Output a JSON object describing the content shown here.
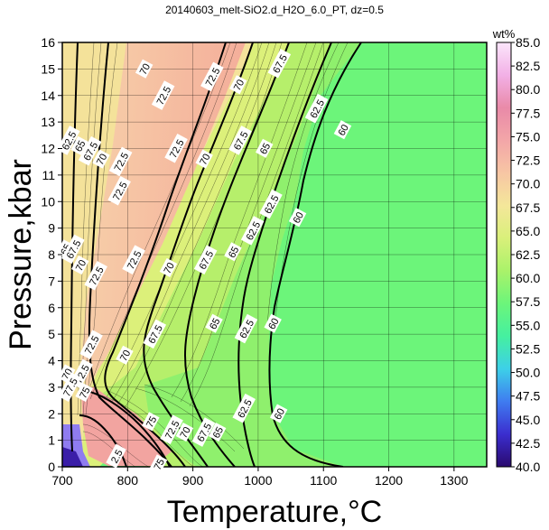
{
  "chart_data": {
    "type": "heatmap",
    "title": "20140603_melt-SiO2.d_H2O_6.0_PT, dz=0.5",
    "xlabel": "Temperature,°C",
    "ylabel": "Pressure,kbar",
    "xlim": [
      700,
      1350
    ],
    "ylim": [
      0,
      16
    ],
    "x_ticks": [
      "700",
      "800",
      "900",
      "1000",
      "1100",
      "1200",
      "1300"
    ],
    "x_tick_values": [
      700,
      800,
      900,
      1000,
      1100,
      1200,
      1300
    ],
    "y_ticks": [
      "0",
      "1",
      "2",
      "3",
      "4",
      "5",
      "6",
      "7",
      "8",
      "9",
      "10",
      "11",
      "12",
      "13",
      "14",
      "15",
      "16"
    ],
    "y_tick_values": [
      0,
      1,
      2,
      3,
      4,
      5,
      6,
      7,
      8,
      9,
      10,
      11,
      12,
      13,
      14,
      15,
      16
    ],
    "grid": true,
    "colorbar": {
      "unit": "wt%",
      "ticks": [
        "40.0",
        "42.5",
        "45.0",
        "47.5",
        "50.0",
        "52.5",
        "55.0",
        "57.5",
        "60.0",
        "62.5",
        "65.0",
        "67.5",
        "70.0",
        "72.5",
        "75.0",
        "77.5",
        "80.0",
        "82.5",
        "85.0"
      ],
      "range": [
        40,
        85
      ],
      "colors": [
        "#2a0a6e",
        "#3b2ecf",
        "#3f7cf0",
        "#3dd0e8",
        "#45f0a0",
        "#6cf57a",
        "#aaf26a",
        "#d9f07a",
        "#f4e79a",
        "#f7c6a4",
        "#f3a6a8",
        "#e98aa8",
        "#f2b0e6",
        "#fbe6fb"
      ]
    },
    "contour_labels": [
      {
        "text": "70",
        "t": 826,
        "p": 15.0
      },
      {
        "text": "72.5",
        "t": 855,
        "p": 14.0
      },
      {
        "text": "72.5",
        "t": 930,
        "p": 14.7
      },
      {
        "text": "70",
        "t": 970,
        "p": 14.4
      },
      {
        "text": "67.5",
        "t": 1033,
        "p": 15.2
      },
      {
        "text": "62.5",
        "t": 1090,
        "p": 13.5
      },
      {
        "text": "60",
        "t": 1130,
        "p": 12.7
      },
      {
        "text": "62.5",
        "t": 710,
        "p": 12.3
      },
      {
        "text": "65",
        "t": 727,
        "p": 12.1
      },
      {
        "text": "67.5",
        "t": 743,
        "p": 11.9
      },
      {
        "text": "70",
        "t": 760,
        "p": 11.6
      },
      {
        "text": "72.5",
        "t": 790,
        "p": 11.5
      },
      {
        "text": "72.5",
        "t": 875,
        "p": 12.0
      },
      {
        "text": "70",
        "t": 918,
        "p": 11.6
      },
      {
        "text": "67.5",
        "t": 973,
        "p": 12.3
      },
      {
        "text": "65",
        "t": 1010,
        "p": 12.0
      },
      {
        "text": "72.5",
        "t": 788,
        "p": 10.4
      },
      {
        "text": "62.5",
        "t": 1020,
        "p": 9.9
      },
      {
        "text": "60",
        "t": 1061,
        "p": 9.4
      },
      {
        "text": "65",
        "t": 705,
        "p": 8.2
      },
      {
        "text": "67.5",
        "t": 717,
        "p": 8.2
      },
      {
        "text": "70",
        "t": 728,
        "p": 7.6
      },
      {
        "text": "72.5",
        "t": 752,
        "p": 7.2
      },
      {
        "text": "72.5",
        "t": 810,
        "p": 7.8
      },
      {
        "text": "70",
        "t": 863,
        "p": 7.5
      },
      {
        "text": "67.5",
        "t": 920,
        "p": 7.8
      },
      {
        "text": "65",
        "t": 962,
        "p": 8.1
      },
      {
        "text": "62.5",
        "t": 992,
        "p": 8.9
      },
      {
        "text": "67.5",
        "t": 842,
        "p": 5.0
      },
      {
        "text": "65",
        "t": 933,
        "p": 5.4
      },
      {
        "text": "62.5",
        "t": 982,
        "p": 5.2
      },
      {
        "text": "60",
        "t": 1023,
        "p": 5.4
      },
      {
        "text": "72.5",
        "t": 745,
        "p": 4.6
      },
      {
        "text": "70",
        "t": 796,
        "p": 4.2
      },
      {
        "text": "70",
        "t": 707,
        "p": 3.5
      },
      {
        "text": "72.5",
        "t": 730,
        "p": 3.5
      },
      {
        "text": "75",
        "t": 734,
        "p": 2.8
      },
      {
        "text": "77.5",
        "t": 712,
        "p": 3.0
      },
      {
        "text": "75",
        "t": 836,
        "p": 1.7
      },
      {
        "text": "72.5",
        "t": 868,
        "p": 1.4
      },
      {
        "text": "70",
        "t": 888,
        "p": 1.3
      },
      {
        "text": "67.5",
        "t": 917,
        "p": 1.3
      },
      {
        "text": "65",
        "t": 938,
        "p": 1.3
      },
      {
        "text": "62.5",
        "t": 979,
        "p": 2.2
      },
      {
        "text": "60",
        "t": 1032,
        "p": 2.0
      },
      {
        "text": "2.5",
        "t": 783,
        "p": 0.4
      },
      {
        "text": "75",
        "t": 848,
        "p": 0.1
      }
    ]
  }
}
